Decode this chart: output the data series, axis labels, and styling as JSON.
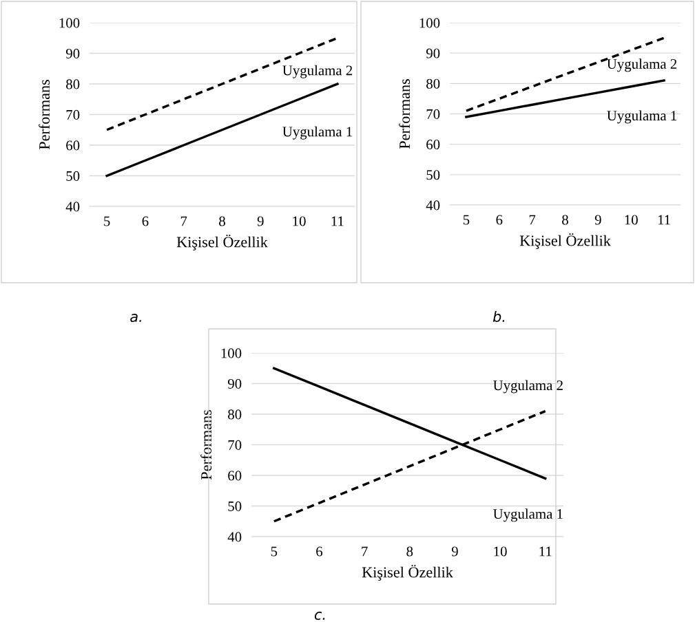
{
  "chart_data": [
    {
      "type": "line",
      "xlabel": "Kişisel Özellik",
      "ylabel": "Performans",
      "categories": [
        "5",
        "6",
        "7",
        "8",
        "9",
        "10",
        "11"
      ],
      "ylim": [
        40,
        100
      ],
      "yticks": [
        40,
        50,
        60,
        70,
        80,
        90,
        100
      ],
      "grid": "y",
      "legend": false,
      "marker": "none",
      "annotations": [
        "a."
      ],
      "series": [
        {
          "name": "Uygulama 1",
          "color": "#000000",
          "line_style": "solid",
          "values": [
            50,
            55,
            60,
            65,
            70,
            75,
            80
          ]
        },
        {
          "name": "Uygulama 2",
          "color": "#000000",
          "line_style": "dashed",
          "values": [
            65,
            70,
            75,
            80,
            85,
            90,
            95
          ]
        }
      ]
    },
    {
      "type": "line",
      "xlabel": "Kişisel Özellik",
      "ylabel": "Performans",
      "categories": [
        "5",
        "6",
        "7",
        "8",
        "9",
        "10",
        "11"
      ],
      "ylim": [
        40,
        100
      ],
      "yticks": [
        40,
        50,
        60,
        70,
        80,
        90,
        100
      ],
      "grid": "y",
      "legend": false,
      "marker": "none",
      "annotations": [
        "b."
      ],
      "series": [
        {
          "name": "Uygulama 1",
          "color": "#000000",
          "line_style": "solid",
          "values": [
            69,
            71,
            73,
            75,
            77,
            79,
            81
          ]
        },
        {
          "name": "Uygulama 2",
          "color": "#000000",
          "line_style": "dashed",
          "values": [
            71,
            75,
            79,
            83,
            87,
            91,
            95
          ]
        }
      ]
    },
    {
      "type": "line",
      "xlabel": "Kişisel Özellik",
      "ylabel": "Performans",
      "categories": [
        "5",
        "6",
        "7",
        "8",
        "9",
        "10",
        "11"
      ],
      "ylim": [
        40,
        100
      ],
      "yticks": [
        40,
        50,
        60,
        70,
        80,
        90,
        100
      ],
      "grid": "y",
      "legend": false,
      "marker": "none",
      "annotations": [
        "c."
      ],
      "series": [
        {
          "name": "Uygulama 1",
          "color": "#000000",
          "line_style": "solid",
          "values": [
            95,
            89,
            83,
            77,
            71,
            65,
            59
          ]
        },
        {
          "name": "Uygulama 2",
          "color": "#000000",
          "line_style": "dashed",
          "values": [
            45,
            51,
            57,
            63,
            69,
            75,
            81
          ]
        }
      ]
    }
  ]
}
